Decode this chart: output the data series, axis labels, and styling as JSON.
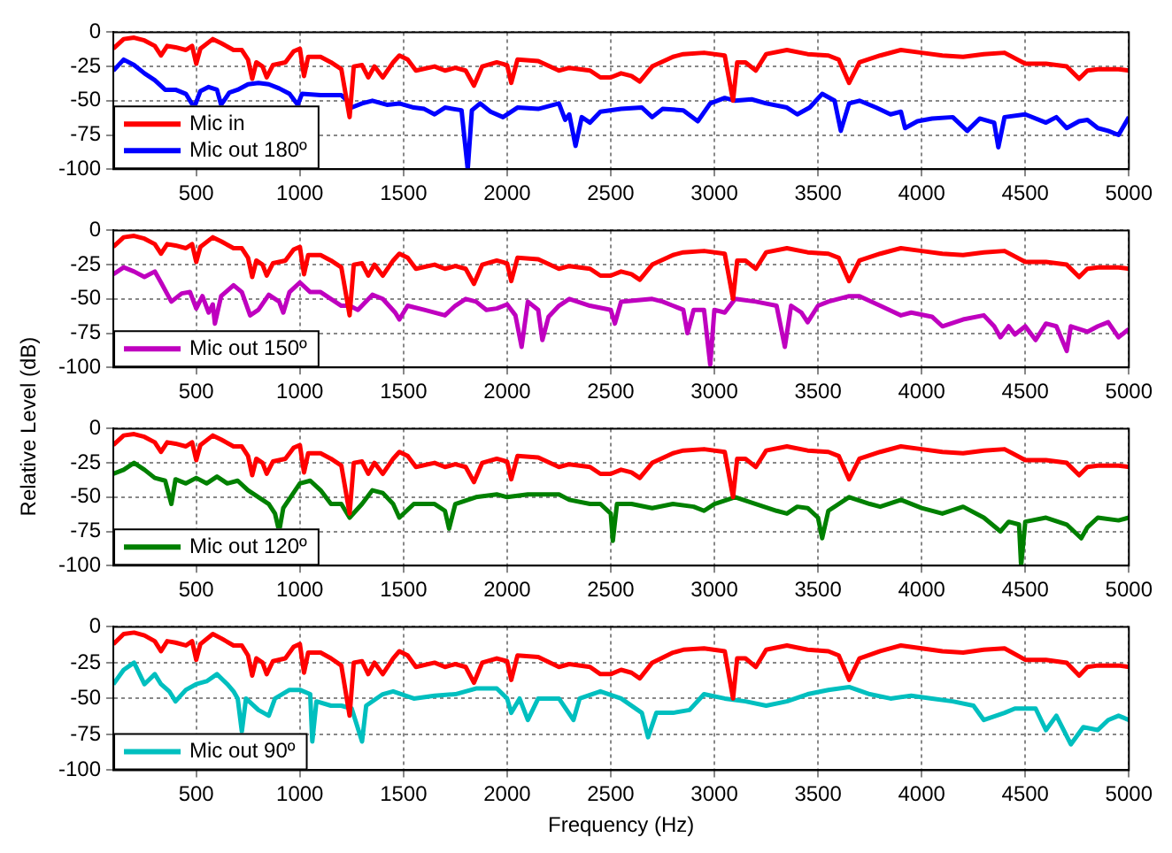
{
  "chart_data": [
    {
      "type": "line",
      "xlim": [
        100,
        5000
      ],
      "xticks": [
        500,
        1000,
        1500,
        2000,
        2500,
        3000,
        3500,
        4000,
        4500,
        5000
      ],
      "ylim": [
        -100,
        0
      ],
      "yticks": [
        0,
        -25,
        -50,
        -75,
        -100
      ],
      "grid": true,
      "legend": "bottom left",
      "line_style": "solid",
      "series": [
        {
          "name": "Mic in",
          "color": "#ff0000",
          "x": [
            100,
            150,
            200,
            250,
            300,
            330,
            360,
            400,
            450,
            480,
            500,
            520,
            580,
            620,
            680,
            720,
            750,
            770,
            790,
            820,
            840,
            870,
            930,
            970,
            1000,
            1020,
            1040,
            1100,
            1150,
            1200,
            1240,
            1260,
            1300,
            1330,
            1360,
            1400,
            1450,
            1480,
            1520,
            1560,
            1650,
            1700,
            1750,
            1800,
            1840,
            1880,
            1950,
            2000,
            2020,
            2050,
            2150,
            2250,
            2300,
            2400,
            2450,
            2500,
            2550,
            2600,
            2640,
            2700,
            2800,
            2850,
            2950,
            3050,
            3090,
            3110,
            3150,
            3200,
            3250,
            3350,
            3450,
            3550,
            3600,
            3650,
            3700,
            3800,
            3900,
            4000,
            4100,
            4200,
            4300,
            4400,
            4500,
            4600,
            4700,
            4760,
            4800,
            4850,
            4950,
            5000
          ],
          "values": [
            -12,
            -5,
            -4,
            -6,
            -10,
            -17,
            -10,
            -11,
            -13,
            -10,
            -23,
            -12,
            -5,
            -8,
            -13,
            -13,
            -20,
            -34,
            -22,
            -25,
            -33,
            -24,
            -22,
            -14,
            -12,
            -32,
            -18,
            -18,
            -22,
            -27,
            -62,
            -25,
            -24,
            -33,
            -25,
            -33,
            -22,
            -17,
            -20,
            -28,
            -25,
            -28,
            -26,
            -28,
            -39,
            -25,
            -22,
            -24,
            -37,
            -20,
            -21,
            -28,
            -26,
            -28,
            -33,
            -33,
            -30,
            -32,
            -36,
            -25,
            -18,
            -16,
            -15,
            -17,
            -50,
            -22,
            -22,
            -28,
            -16,
            -13,
            -16,
            -17,
            -20,
            -37,
            -22,
            -17,
            -13,
            -15,
            -17,
            -18,
            -16,
            -15,
            -23,
            -23,
            -25,
            -34,
            -28,
            -27,
            -27,
            -28
          ]
        },
        {
          "name": "Mic out 180º",
          "color": "#0000ff",
          "x": [
            100,
            150,
            200,
            250,
            300,
            350,
            400,
            450,
            490,
            520,
            560,
            600,
            620,
            660,
            700,
            750,
            800,
            850,
            900,
            950,
            990,
            1010,
            1100,
            1200,
            1230,
            1250,
            1300,
            1350,
            1420,
            1480,
            1550,
            1600,
            1650,
            1700,
            1780,
            1810,
            1830,
            1870,
            1920,
            1980,
            2050,
            2150,
            2250,
            2280,
            2300,
            2330,
            2360,
            2400,
            2450,
            2550,
            2650,
            2700,
            2750,
            2850,
            2920,
            2980,
            3050,
            3100,
            3180,
            3250,
            3350,
            3400,
            3460,
            3520,
            3580,
            3610,
            3650,
            3700,
            3780,
            3850,
            3900,
            3920,
            3980,
            4050,
            4150,
            4220,
            4280,
            4350,
            4370,
            4400,
            4500,
            4600,
            4650,
            4700,
            4760,
            4800,
            4850,
            4900,
            4950,
            5000
          ],
          "values": [
            -28,
            -20,
            -24,
            -30,
            -35,
            -42,
            -42,
            -45,
            -55,
            -43,
            -40,
            -42,
            -53,
            -44,
            -42,
            -38,
            -37,
            -38,
            -41,
            -45,
            -53,
            -45,
            -46,
            -46,
            -50,
            -55,
            -52,
            -50,
            -53,
            -52,
            -55,
            -56,
            -60,
            -55,
            -57,
            -100,
            -57,
            -52,
            -58,
            -62,
            -55,
            -56,
            -52,
            -64,
            -60,
            -83,
            -62,
            -66,
            -58,
            -56,
            -55,
            -62,
            -56,
            -57,
            -65,
            -52,
            -48,
            -50,
            -49,
            -52,
            -55,
            -60,
            -55,
            -45,
            -50,
            -72,
            -52,
            -50,
            -55,
            -60,
            -58,
            -70,
            -65,
            -63,
            -62,
            -72,
            -63,
            -66,
            -84,
            -62,
            -60,
            -66,
            -62,
            -70,
            -65,
            -64,
            -70,
            -72,
            -75,
            -62
          ]
        }
      ]
    },
    {
      "type": "line",
      "ylabel": "Relative Level (dB)",
      "xlim": [
        100,
        5000
      ],
      "xticks": [
        500,
        1000,
        1500,
        2000,
        2500,
        3000,
        3500,
        4000,
        4500,
        5000
      ],
      "ylim": [
        -100,
        0
      ],
      "yticks": [
        0,
        -25,
        -50,
        -75,
        -100
      ],
      "grid": true,
      "legend": "bottom left",
      "line_style": "solid",
      "series": [
        {
          "color": "#ff0000",
          "x": [
            100,
            150,
            200,
            250,
            300,
            330,
            360,
            400,
            450,
            480,
            500,
            520,
            580,
            620,
            680,
            720,
            750,
            770,
            790,
            820,
            840,
            870,
            930,
            970,
            1000,
            1020,
            1040,
            1100,
            1150,
            1200,
            1240,
            1260,
            1300,
            1330,
            1360,
            1400,
            1450,
            1480,
            1520,
            1560,
            1650,
            1700,
            1750,
            1800,
            1840,
            1880,
            1950,
            2000,
            2020,
            2050,
            2150,
            2250,
            2300,
            2400,
            2450,
            2500,
            2550,
            2600,
            2640,
            2700,
            2800,
            2850,
            2950,
            3050,
            3090,
            3110,
            3150,
            3200,
            3250,
            3350,
            3450,
            3550,
            3600,
            3650,
            3700,
            3800,
            3900,
            4000,
            4100,
            4200,
            4300,
            4400,
            4500,
            4600,
            4700,
            4760,
            4800,
            4850,
            4950,
            5000
          ],
          "values": [
            -12,
            -5,
            -4,
            -6,
            -10,
            -17,
            -10,
            -11,
            -13,
            -10,
            -23,
            -12,
            -5,
            -8,
            -13,
            -13,
            -20,
            -34,
            -22,
            -25,
            -33,
            -24,
            -22,
            -14,
            -12,
            -32,
            -18,
            -18,
            -22,
            -27,
            -62,
            -25,
            -24,
            -33,
            -25,
            -33,
            -22,
            -17,
            -20,
            -28,
            -25,
            -28,
            -26,
            -28,
            -39,
            -25,
            -22,
            -24,
            -37,
            -20,
            -21,
            -28,
            -26,
            -28,
            -33,
            -33,
            -30,
            -32,
            -36,
            -25,
            -18,
            -16,
            -15,
            -17,
            -50,
            -22,
            -22,
            -28,
            -16,
            -13,
            -16,
            -17,
            -20,
            -37,
            -22,
            -17,
            -13,
            -15,
            -17,
            -18,
            -16,
            -15,
            -23,
            -23,
            -25,
            -34,
            -28,
            -27,
            -27,
            -28
          ]
        },
        {
          "name": "Mic out 150º",
          "color": "#bf00bf",
          "x": [
            100,
            150,
            200,
            250,
            300,
            330,
            380,
            430,
            470,
            500,
            530,
            560,
            580,
            590,
            620,
            680,
            720,
            760,
            800,
            850,
            900,
            920,
            950,
            1000,
            1050,
            1100,
            1150,
            1200,
            1240,
            1280,
            1350,
            1400,
            1460,
            1480,
            1520,
            1600,
            1700,
            1750,
            1800,
            1850,
            1900,
            1950,
            2000,
            2040,
            2070,
            2100,
            2150,
            2170,
            2200,
            2250,
            2300,
            2400,
            2500,
            2520,
            2550,
            2700,
            2750,
            2800,
            2850,
            2870,
            2900,
            2950,
            2980,
            3000,
            3050,
            3100,
            3200,
            3300,
            3340,
            3370,
            3420,
            3450,
            3500,
            3550,
            3650,
            3700,
            3800,
            3900,
            3950,
            4050,
            4100,
            4200,
            4300,
            4350,
            4380,
            4420,
            4450,
            4500,
            4550,
            4600,
            4650,
            4700,
            4720,
            4800,
            4850,
            4900,
            4950,
            5000
          ],
          "values": [
            -32,
            -27,
            -30,
            -34,
            -30,
            -38,
            -52,
            -46,
            -45,
            -57,
            -48,
            -60,
            -54,
            -68,
            -48,
            -40,
            -45,
            -62,
            -58,
            -47,
            -52,
            -60,
            -45,
            -38,
            -45,
            -45,
            -50,
            -55,
            -55,
            -58,
            -47,
            -50,
            -60,
            -65,
            -55,
            -58,
            -62,
            -55,
            -50,
            -52,
            -58,
            -57,
            -54,
            -62,
            -85,
            -52,
            -58,
            -80,
            -63,
            -55,
            -50,
            -55,
            -58,
            -68,
            -52,
            -50,
            -52,
            -55,
            -58,
            -75,
            -58,
            -58,
            -98,
            -58,
            -60,
            -50,
            -52,
            -55,
            -85,
            -55,
            -60,
            -67,
            -55,
            -52,
            -48,
            -48,
            -55,
            -62,
            -60,
            -63,
            -70,
            -65,
            -62,
            -70,
            -78,
            -70,
            -76,
            -70,
            -80,
            -68,
            -70,
            -88,
            -70,
            -74,
            -70,
            -67,
            -78,
            -72
          ]
        }
      ]
    },
    {
      "type": "line",
      "xlim": [
        100,
        5000
      ],
      "xticks": [
        500,
        1000,
        1500,
        2000,
        2500,
        3000,
        3500,
        4000,
        4500,
        5000
      ],
      "ylim": [
        -100,
        0
      ],
      "yticks": [
        0,
        -25,
        -50,
        -75,
        -100
      ],
      "grid": true,
      "legend": "bottom left",
      "line_style": "solid",
      "series": [
        {
          "color": "#ff0000",
          "x": [
            100,
            150,
            200,
            250,
            300,
            330,
            360,
            400,
            450,
            480,
            500,
            520,
            580,
            620,
            680,
            720,
            750,
            770,
            790,
            820,
            840,
            870,
            930,
            970,
            1000,
            1020,
            1040,
            1100,
            1150,
            1200,
            1240,
            1260,
            1300,
            1330,
            1360,
            1400,
            1450,
            1480,
            1520,
            1560,
            1650,
            1700,
            1750,
            1800,
            1840,
            1880,
            1950,
            2000,
            2020,
            2050,
            2150,
            2250,
            2300,
            2400,
            2450,
            2500,
            2550,
            2600,
            2640,
            2700,
            2800,
            2850,
            2950,
            3050,
            3090,
            3110,
            3150,
            3200,
            3250,
            3350,
            3450,
            3550,
            3600,
            3650,
            3700,
            3800,
            3900,
            4000,
            4100,
            4200,
            4300,
            4400,
            4500,
            4600,
            4700,
            4760,
            4800,
            4850,
            4950,
            5000
          ],
          "values": [
            -12,
            -5,
            -4,
            -6,
            -10,
            -17,
            -10,
            -11,
            -13,
            -10,
            -23,
            -12,
            -5,
            -8,
            -13,
            -13,
            -20,
            -34,
            -22,
            -25,
            -33,
            -24,
            -22,
            -14,
            -12,
            -32,
            -18,
            -18,
            -22,
            -27,
            -62,
            -25,
            -24,
            -33,
            -25,
            -33,
            -22,
            -17,
            -20,
            -28,
            -25,
            -28,
            -26,
            -28,
            -39,
            -25,
            -22,
            -24,
            -37,
            -20,
            -21,
            -28,
            -26,
            -28,
            -33,
            -33,
            -30,
            -32,
            -36,
            -25,
            -18,
            -16,
            -15,
            -17,
            -50,
            -22,
            -22,
            -28,
            -16,
            -13,
            -16,
            -17,
            -20,
            -37,
            -22,
            -17,
            -13,
            -15,
            -17,
            -18,
            -16,
            -15,
            -23,
            -23,
            -25,
            -34,
            -28,
            -27,
            -27,
            -28
          ]
        },
        {
          "name": "Mic out 120º",
          "color": "#008000",
          "x": [
            100,
            150,
            200,
            250,
            300,
            350,
            380,
            400,
            450,
            500,
            550,
            600,
            650,
            700,
            750,
            800,
            850,
            880,
            900,
            920,
            1000,
            1050,
            1100,
            1150,
            1200,
            1240,
            1300,
            1350,
            1400,
            1450,
            1480,
            1550,
            1650,
            1700,
            1720,
            1750,
            1850,
            1950,
            2000,
            2100,
            2250,
            2300,
            2400,
            2450,
            2500,
            2510,
            2530,
            2600,
            2700,
            2800,
            2900,
            2950,
            3000,
            3100,
            3200,
            3300,
            3350,
            3400,
            3450,
            3500,
            3520,
            3550,
            3650,
            3750,
            3800,
            3900,
            4000,
            4100,
            4200,
            4300,
            4380,
            4420,
            4470,
            4480,
            4500,
            4600,
            4700,
            4770,
            4800,
            4850,
            4950,
            5000
          ],
          "values": [
            -33,
            -30,
            -25,
            -30,
            -36,
            -38,
            -55,
            -37,
            -40,
            -36,
            -40,
            -35,
            -40,
            -38,
            -45,
            -50,
            -55,
            -62,
            -75,
            -58,
            -40,
            -38,
            -45,
            -55,
            -55,
            -65,
            -55,
            -45,
            -47,
            -55,
            -65,
            -55,
            -55,
            -60,
            -73,
            -55,
            -50,
            -48,
            -50,
            -48,
            -48,
            -52,
            -55,
            -55,
            -62,
            -82,
            -55,
            -55,
            -58,
            -55,
            -57,
            -60,
            -55,
            -50,
            -55,
            -60,
            -62,
            -57,
            -58,
            -65,
            -80,
            -60,
            -50,
            -55,
            -57,
            -52,
            -58,
            -62,
            -57,
            -65,
            -75,
            -68,
            -70,
            -100,
            -68,
            -65,
            -70,
            -80,
            -72,
            -65,
            -67,
            -65
          ]
        }
      ]
    },
    {
      "type": "line",
      "xlabel": "Frequency (Hz)",
      "xlim": [
        100,
        5000
      ],
      "xticks": [
        500,
        1000,
        1500,
        2000,
        2500,
        3000,
        3500,
        4000,
        4500,
        5000
      ],
      "ylim": [
        -100,
        0
      ],
      "yticks": [
        0,
        -25,
        -50,
        -75,
        -100
      ],
      "grid": true,
      "legend": "bottom left",
      "line_style": "solid",
      "series": [
        {
          "color": "#ff0000",
          "x": [
            100,
            150,
            200,
            250,
            300,
            330,
            360,
            400,
            450,
            480,
            500,
            520,
            580,
            620,
            680,
            720,
            750,
            770,
            790,
            820,
            840,
            870,
            930,
            970,
            1000,
            1020,
            1040,
            1100,
            1150,
            1200,
            1240,
            1260,
            1300,
            1330,
            1360,
            1400,
            1450,
            1480,
            1520,
            1560,
            1650,
            1700,
            1750,
            1800,
            1840,
            1880,
            1950,
            2000,
            2020,
            2050,
            2150,
            2250,
            2300,
            2400,
            2450,
            2500,
            2550,
            2600,
            2640,
            2700,
            2800,
            2850,
            2950,
            3050,
            3090,
            3110,
            3150,
            3200,
            3250,
            3350,
            3450,
            3550,
            3600,
            3650,
            3700,
            3800,
            3900,
            4000,
            4100,
            4200,
            4300,
            4400,
            4500,
            4600,
            4700,
            4760,
            4800,
            4850,
            4950,
            5000
          ],
          "values": [
            -12,
            -5,
            -4,
            -6,
            -10,
            -17,
            -10,
            -11,
            -13,
            -10,
            -23,
            -12,
            -5,
            -8,
            -13,
            -13,
            -20,
            -34,
            -22,
            -25,
            -33,
            -24,
            -22,
            -14,
            -12,
            -32,
            -18,
            -18,
            -22,
            -27,
            -62,
            -25,
            -24,
            -33,
            -25,
            -33,
            -22,
            -17,
            -20,
            -28,
            -25,
            -28,
            -26,
            -28,
            -39,
            -25,
            -22,
            -24,
            -37,
            -20,
            -21,
            -28,
            -26,
            -28,
            -33,
            -33,
            -30,
            -32,
            -36,
            -25,
            -18,
            -16,
            -15,
            -17,
            -50,
            -22,
            -22,
            -28,
            -16,
            -13,
            -16,
            -17,
            -20,
            -37,
            -22,
            -17,
            -13,
            -15,
            -17,
            -18,
            -16,
            -15,
            -23,
            -23,
            -25,
            -34,
            -28,
            -27,
            -27,
            -28
          ]
        },
        {
          "name": "Mic out 90º",
          "color": "#00bfbf",
          "x": [
            100,
            150,
            200,
            250,
            300,
            330,
            370,
            400,
            450,
            500,
            550,
            600,
            650,
            680,
            700,
            720,
            740,
            800,
            850,
            880,
            950,
            1000,
            1050,
            1060,
            1080,
            1150,
            1200,
            1250,
            1300,
            1320,
            1400,
            1450,
            1550,
            1650,
            1750,
            1850,
            1950,
            2000,
            2020,
            2060,
            2100,
            2150,
            2250,
            2320,
            2350,
            2450,
            2550,
            2650,
            2680,
            2720,
            2800,
            2880,
            2950,
            3050,
            3150,
            3250,
            3350,
            3450,
            3550,
            3650,
            3750,
            3850,
            3950,
            4050,
            4150,
            4250,
            4300,
            4400,
            4450,
            4550,
            4600,
            4650,
            4720,
            4780,
            4850,
            4900,
            4950,
            5000
          ],
          "values": [
            -40,
            -30,
            -25,
            -40,
            -33,
            -40,
            -45,
            -52,
            -44,
            -40,
            -38,
            -33,
            -40,
            -45,
            -50,
            -73,
            -50,
            -58,
            -62,
            -50,
            -44,
            -44,
            -47,
            -80,
            -52,
            -55,
            -55,
            -57,
            -80,
            -55,
            -47,
            -45,
            -50,
            -48,
            -47,
            -43,
            -43,
            -50,
            -60,
            -50,
            -65,
            -50,
            -50,
            -65,
            -50,
            -45,
            -50,
            -60,
            -77,
            -60,
            -60,
            -58,
            -47,
            -50,
            -52,
            -55,
            -52,
            -47,
            -44,
            -42,
            -47,
            -50,
            -48,
            -50,
            -52,
            -55,
            -65,
            -60,
            -57,
            -57,
            -72,
            -62,
            -82,
            -70,
            -72,
            -65,
            -62,
            -65
          ]
        }
      ]
    }
  ]
}
